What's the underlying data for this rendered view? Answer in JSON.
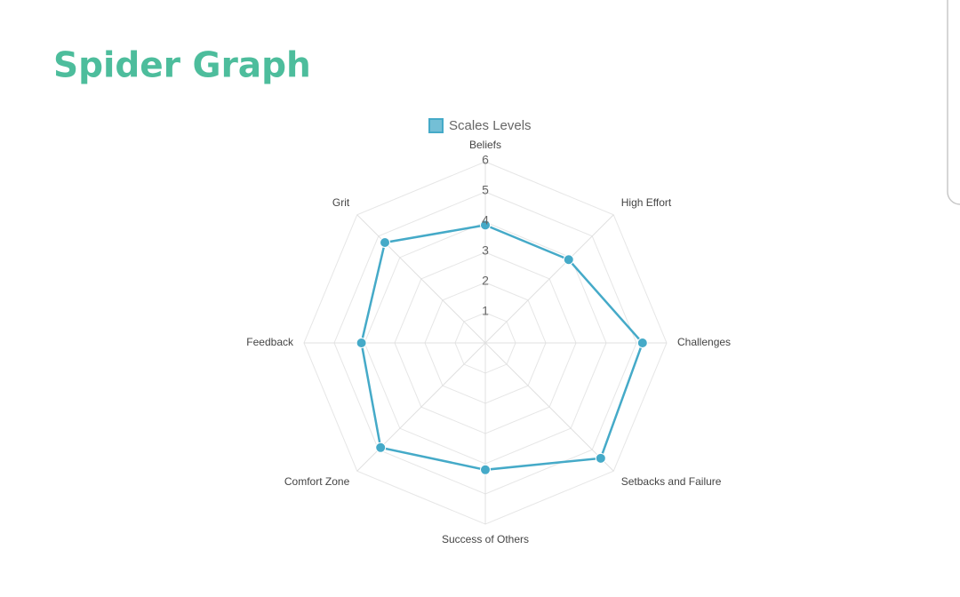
{
  "chart_data": {
    "type": "radar",
    "title": "Spider Graph",
    "categories": [
      "Beliefs",
      "High Effort",
      "Challenges",
      "Setbacks and Failure",
      "Success of Others",
      "Comfort Zone",
      "Feedback",
      "Grit"
    ],
    "series": [
      {
        "name": "Scales Levels",
        "color": "#45aac8",
        "values": [
          3.9,
          3.9,
          5.2,
          5.4,
          4.2,
          4.9,
          4.1,
          4.7
        ]
      }
    ],
    "rlim": [
      0,
      6
    ],
    "rticks": [
      1,
      2,
      3,
      4,
      5,
      6
    ],
    "grid": true,
    "legend": "top"
  }
}
